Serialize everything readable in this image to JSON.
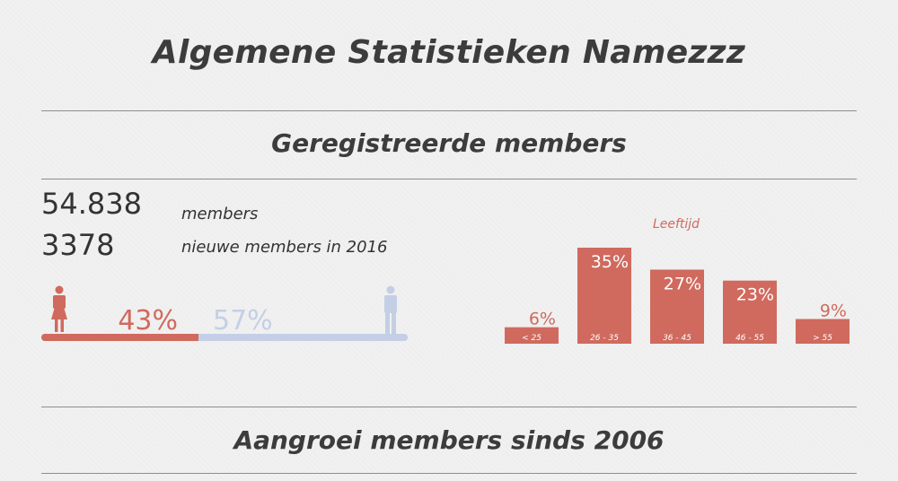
{
  "title": "Algemene Statistieken Namezzz",
  "sections": {
    "registered": "Geregistreerde members",
    "growth": "Aangroei members sinds 2006"
  },
  "stats": [
    {
      "value": "54.838",
      "label": "members"
    },
    {
      "value": "3378",
      "label": "nieuwe members in 2016"
    }
  ],
  "gender": {
    "female_pct": 43,
    "female_label": "43%",
    "male_pct": 57,
    "male_label": "57%",
    "female_color": "#d06a5e",
    "male_color": "#c4cfe6",
    "female_icon": "female-person-icon",
    "male_icon": "male-person-icon"
  },
  "chart_data": {
    "type": "bar",
    "title": "Leeftijd",
    "categories": [
      "< 25",
      "26 - 35",
      "36 - 45",
      "46 - 55",
      "> 55"
    ],
    "values": [
      6,
      35,
      27,
      23,
      9
    ],
    "value_labels": [
      "6%",
      "35%",
      "27%",
      "23%",
      "9%"
    ],
    "ylim": [
      0,
      35
    ],
    "color": "#d06a5e",
    "grid": false
  }
}
